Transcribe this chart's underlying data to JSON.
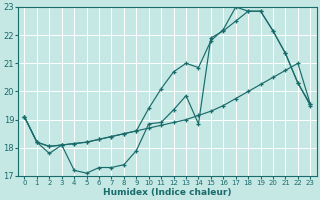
{
  "xlabel": "Humidex (Indice chaleur)",
  "ylabel": "",
  "xlim": [
    -0.5,
    23.5
  ],
  "ylim": [
    17,
    23
  ],
  "yticks": [
    17,
    18,
    19,
    20,
    21,
    22,
    23
  ],
  "xticks": [
    0,
    1,
    2,
    3,
    4,
    5,
    6,
    7,
    8,
    9,
    10,
    11,
    12,
    13,
    14,
    15,
    16,
    17,
    18,
    19,
    20,
    21,
    22,
    23
  ],
  "bg_color": "#c5e8e4",
  "line_color": "#1a6b6b",
  "grid_color": "#b0d8d4",
  "line1_x": [
    0,
    1,
    2,
    3,
    4,
    5,
    6,
    7,
    8,
    9,
    10,
    11,
    12,
    13,
    14,
    15,
    16,
    17,
    18,
    19,
    20,
    21,
    22,
    23
  ],
  "line1_y": [
    19.1,
    18.2,
    17.8,
    18.1,
    17.2,
    17.1,
    17.3,
    17.3,
    17.4,
    17.9,
    18.85,
    18.9,
    19.35,
    19.85,
    18.85,
    21.9,
    22.15,
    22.5,
    22.85,
    22.85,
    22.15,
    21.35,
    20.3,
    19.5
  ],
  "line2_x": [
    0,
    1,
    2,
    3,
    4,
    5,
    6,
    7,
    8,
    9,
    10,
    11,
    12,
    13,
    14,
    15,
    16,
    17,
    18,
    19,
    20,
    21,
    22,
    23
  ],
  "line2_y": [
    19.1,
    18.2,
    18.05,
    18.1,
    18.15,
    18.2,
    18.3,
    18.4,
    18.5,
    18.6,
    18.7,
    18.8,
    18.9,
    19.0,
    19.15,
    19.3,
    19.5,
    19.75,
    20.0,
    20.25,
    20.5,
    20.75,
    21.0,
    19.55
  ],
  "line3_x": [
    0,
    1,
    2,
    3,
    4,
    5,
    6,
    7,
    8,
    9,
    10,
    11,
    12,
    13,
    14,
    15,
    16,
    17,
    18,
    19,
    20,
    21,
    22,
    23
  ],
  "line3_y": [
    19.1,
    18.2,
    18.05,
    18.1,
    18.15,
    18.2,
    18.3,
    18.4,
    18.5,
    18.6,
    19.4,
    20.1,
    20.7,
    21.0,
    20.85,
    21.8,
    22.2,
    23.0,
    22.85,
    22.85,
    22.15,
    21.35,
    20.3,
    19.55
  ]
}
